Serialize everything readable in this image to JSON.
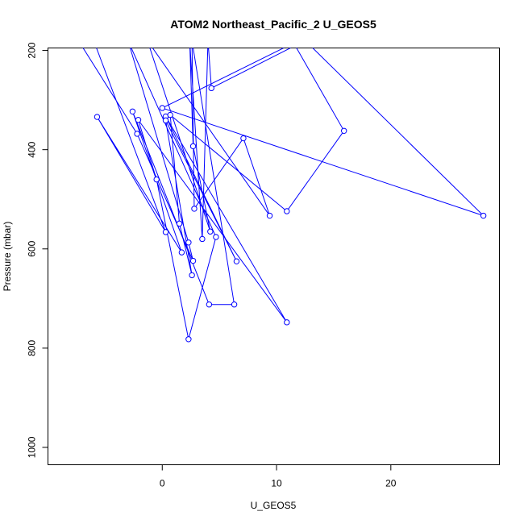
{
  "chart_data": {
    "type": "line",
    "title": "ATOM2 Northeast_Pacific_2 U_GEOS5",
    "xlabel": "U_GEOS5",
    "ylabel": "Pressure (mbar)",
    "xlim": [
      -10,
      29.5
    ],
    "ylim": [
      1035,
      195
    ],
    "y_reversed": true,
    "xticks": [
      0,
      10,
      20
    ],
    "yticks": [
      200,
      400,
      600,
      800,
      1000
    ],
    "grid": false,
    "legend": "none",
    "line_color": "#0000ff",
    "series": [
      {
        "points": [
          {
            "x": -7.2,
            "y": 185
          },
          {
            "x": -2.2,
            "y": 368
          },
          {
            "x": 2.7,
            "y": 624
          },
          {
            "x": 2.3,
            "y": 587
          },
          {
            "x": -3.0,
            "y": 180
          },
          {
            "x": 4.7,
            "y": 576
          },
          {
            "x": 2.3,
            "y": 782
          },
          {
            "x": -0.5,
            "y": 460
          },
          {
            "x": -2.1,
            "y": 340
          },
          {
            "x": 10.9,
            "y": 748
          },
          {
            "x": 0.3,
            "y": 333
          },
          {
            "x": 6.5,
            "y": 625
          },
          {
            "x": 0.3,
            "y": 341
          },
          {
            "x": 2.6,
            "y": 653
          },
          {
            "x": 1.5,
            "y": 549
          },
          {
            "x": 0.7,
            "y": 330
          },
          {
            "x": 10.9,
            "y": 524
          },
          {
            "x": 15.9,
            "y": 362
          },
          {
            "x": 11.5,
            "y": 185
          },
          {
            "x": 0.0,
            "y": 316
          },
          {
            "x": 28.1,
            "y": 533
          },
          {
            "x": 12.5,
            "y": 180
          },
          {
            "x": 4.3,
            "y": 276
          },
          {
            "x": 4.0,
            "y": 180
          },
          {
            "x": 3.5,
            "y": 580
          },
          {
            "x": 2.4,
            "y": 180
          },
          {
            "x": 2.7,
            "y": 393
          },
          {
            "x": 4.2,
            "y": 565
          },
          {
            "x": -1.3,
            "y": 180
          },
          {
            "x": 9.4,
            "y": 533
          },
          {
            "x": 7.1,
            "y": 377
          },
          {
            "x": 2.8,
            "y": 519
          },
          {
            "x": 2.6,
            "y": 180
          },
          {
            "x": 6.3,
            "y": 712
          },
          {
            "x": 4.1,
            "y": 712
          },
          {
            "x": -2.6,
            "y": 323
          },
          {
            "x": 1.7,
            "y": 607
          },
          {
            "x": -5.7,
            "y": 334
          },
          {
            "x": 0.3,
            "y": 566
          },
          {
            "x": -6.0,
            "y": 180
          }
        ]
      }
    ]
  }
}
